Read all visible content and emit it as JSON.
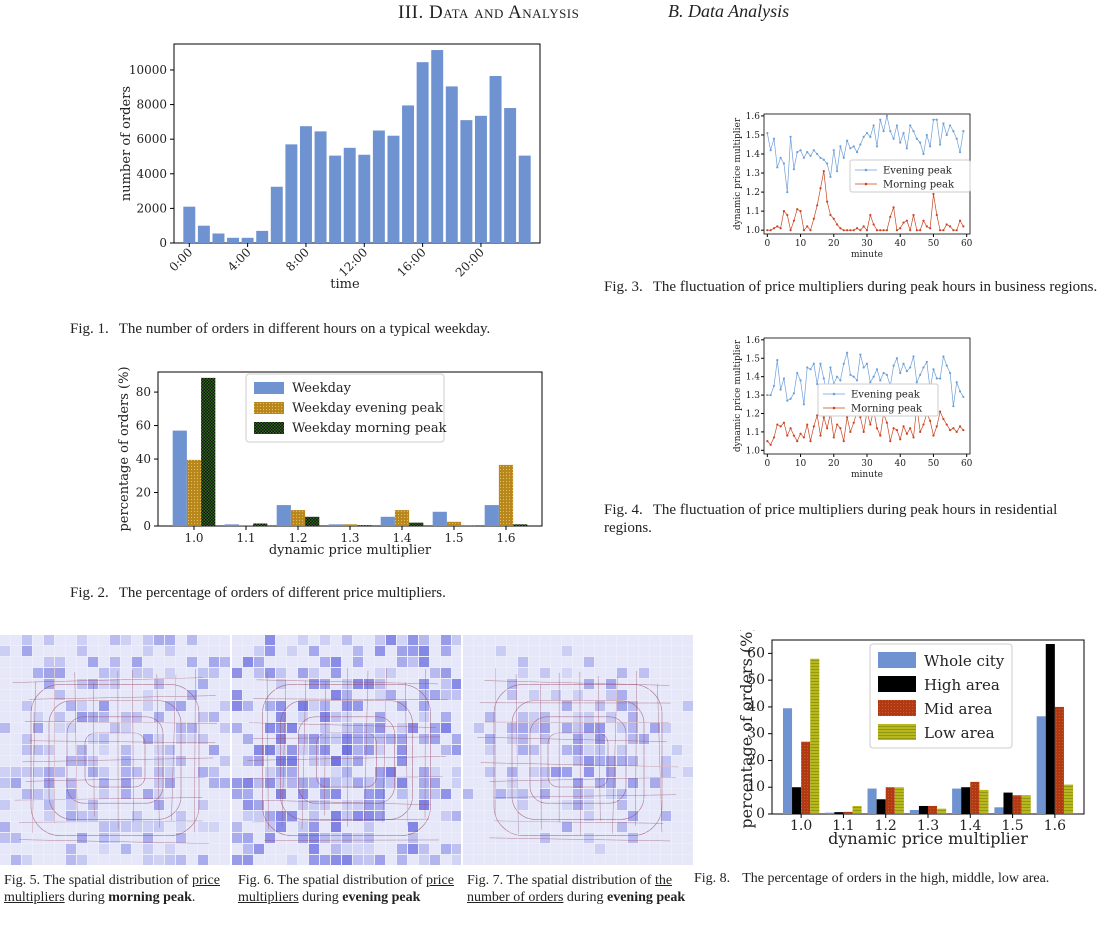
{
  "header": {
    "section_title": "III. Data and Analysis",
    "subsection_title": "B. Data Analysis"
  },
  "captions": {
    "fig1": {
      "num": "Fig. 1.",
      "text": "The number of orders in different hours on a typical weekday."
    },
    "fig2": {
      "num": "Fig. 2.",
      "text": "The percentage of orders of different price multipliers."
    },
    "fig3": {
      "num": "Fig. 3.",
      "text": "The fluctuation of price multipliers during peak hours in business regions."
    },
    "fig4": {
      "num": "Fig. 4.",
      "text": "The fluctuation of price multipliers during peak hours in residential regions."
    },
    "fig5": {
      "pre": "Fig. 5. The spatial distribution of ",
      "ul": "price multipliers",
      "mid": " during ",
      "bold": "morning peak",
      "post": "."
    },
    "fig6": {
      "pre": "Fig. 6. The spatial distribution of ",
      "ul": "price multipliers",
      "mid": " during ",
      "bold": "evening peak",
      "post": ""
    },
    "fig7": {
      "pre": "Fig. 7. The spatial distribution of ",
      "ul": "the number of orders",
      "mid": " during ",
      "bold": "evening peak",
      "post": ""
    },
    "fig8": {
      "num": "Fig. 8.",
      "text": "The percentage of orders in the high, middle, low area."
    }
  },
  "colors": {
    "blue": "#6f93d0",
    "gold": "#b8861b",
    "green": "#2f6a1c",
    "black": "#000000",
    "red": "#b13a12",
    "olive": "#b8b81c",
    "line_blue": "#6e9fd8",
    "line_red": "#cc4422",
    "map_bg": "#e6e8f9",
    "map_cell": "#6b6fe0",
    "map_road": "#9a4b6a"
  },
  "chart_data": [
    {
      "id": "fig1",
      "type": "bar",
      "xlabel": "time",
      "ylabel": "number of orders",
      "ylim": [
        0,
        11500
      ],
      "yticks": [
        0,
        2000,
        4000,
        6000,
        8000,
        10000
      ],
      "xticks": [
        {
          "i": 0,
          "label": "0:00"
        },
        {
          "i": 4,
          "label": "4:00"
        },
        {
          "i": 8,
          "label": "8:00"
        },
        {
          "i": 12,
          "label": "12:00"
        },
        {
          "i": 16,
          "label": "16:00"
        },
        {
          "i": 20,
          "label": "20:00"
        }
      ],
      "categories": [
        "0",
        "1",
        "2",
        "3",
        "4",
        "5",
        "6",
        "7",
        "8",
        "9",
        "10",
        "11",
        "12",
        "13",
        "14",
        "15",
        "16",
        "17",
        "18",
        "19",
        "20",
        "21",
        "22",
        "23"
      ],
      "values": [
        2100,
        1000,
        550,
        300,
        300,
        700,
        3250,
        5700,
        6750,
        6450,
        5050,
        5500,
        5100,
        6500,
        6200,
        7950,
        10450,
        11150,
        9050,
        7100,
        7350,
        9650,
        7800,
        5050
      ]
    },
    {
      "id": "fig2",
      "type": "bar",
      "xlabel": "dynamic price multiplier",
      "ylabel": "percentage of orders (%)",
      "ylim": [
        0,
        92
      ],
      "yticks": [
        0,
        20,
        40,
        60,
        80
      ],
      "categories": [
        "1.0",
        "1.1",
        "1.2",
        "1.3",
        "1.4",
        "1.5",
        "1.6"
      ],
      "series": [
        {
          "name": "Weekday",
          "values": [
            57,
            1,
            12.5,
            1,
            5.5,
            8.5,
            12.5
          ]
        },
        {
          "name": "Weekday evening peak",
          "values": [
            39.5,
            0.5,
            9.5,
            1,
            9.5,
            2.5,
            36.5
          ]
        },
        {
          "name": "Weekday morning peak",
          "values": [
            88.5,
            1.5,
            5.5,
            0.5,
            2,
            0.2,
            1
          ]
        }
      ],
      "legend": "top-center"
    },
    {
      "id": "fig3",
      "type": "line",
      "xlabel": "minute",
      "ylabel": "dynamic price multiplier",
      "xlim": [
        -1,
        61
      ],
      "ylim": [
        0.98,
        1.61
      ],
      "xticks": [
        0,
        10,
        20,
        30,
        40,
        50,
        60
      ],
      "yticks": [
        1.0,
        1.1,
        1.2,
        1.3,
        1.4,
        1.5,
        1.6
      ],
      "x": [
        0,
        1,
        2,
        3,
        4,
        5,
        6,
        7,
        8,
        9,
        10,
        11,
        12,
        13,
        14,
        15,
        16,
        17,
        18,
        19,
        20,
        21,
        22,
        23,
        24,
        25,
        26,
        27,
        28,
        29,
        30,
        31,
        32,
        33,
        34,
        35,
        36,
        37,
        38,
        39,
        40,
        41,
        42,
        43,
        44,
        45,
        46,
        47,
        48,
        49,
        50,
        51,
        52,
        53,
        54,
        55,
        56,
        57,
        58,
        59
      ],
      "series": [
        {
          "name": "Evening peak",
          "values": [
            1.51,
            1.42,
            1.48,
            1.33,
            1.38,
            1.35,
            1.2,
            1.49,
            1.32,
            1.41,
            1.42,
            1.38,
            1.41,
            1.39,
            1.42,
            1.4,
            1.38,
            1.37,
            1.35,
            1.28,
            1.42,
            1.31,
            1.44,
            1.38,
            1.47,
            1.43,
            1.44,
            1.41,
            1.45,
            1.49,
            1.51,
            1.49,
            1.55,
            1.44,
            1.58,
            1.52,
            1.6,
            1.52,
            1.48,
            1.55,
            1.46,
            1.51,
            1.43,
            1.55,
            1.52,
            1.48,
            1.46,
            1.4,
            1.5,
            1.44,
            1.58,
            1.58,
            1.45,
            1.56,
            1.5,
            1.55,
            1.52,
            1.48,
            1.41,
            1.52
          ]
        },
        {
          "name": "Morning peak",
          "values": [
            1.0,
            1.0,
            1.01,
            1.02,
            1.01,
            1.1,
            1.08,
            1.0,
            1.05,
            1.11,
            1.1,
            1.0,
            1.02,
            1.0,
            1.06,
            1.13,
            1.22,
            1.31,
            1.15,
            1.08,
            1.06,
            1.03,
            1.01,
            1.0,
            1.0,
            1.0,
            1.0,
            1.01,
            1.0,
            1.02,
            1.0,
            1.08,
            1.03,
            1.0,
            1.0,
            1.0,
            1.0,
            1.07,
            1.12,
            1.0,
            1.01,
            1.04,
            1.05,
            1.0,
            1.08,
            1.0,
            1.0,
            1.05,
            1.02,
            1.01,
            1.19,
            1.08,
            1.0,
            1.0,
            1.03,
            1.02,
            1.0,
            1.0,
            1.05,
            1.02
          ]
        }
      ],
      "legend": "center-right"
    },
    {
      "id": "fig4",
      "type": "line",
      "xlabel": "minute",
      "ylabel": "dynamic price multiplier",
      "xlim": [
        -1,
        61
      ],
      "ylim": [
        0.98,
        1.61
      ],
      "xticks": [
        0,
        10,
        20,
        30,
        40,
        50,
        60
      ],
      "yticks": [
        1.0,
        1.1,
        1.2,
        1.3,
        1.4,
        1.5,
        1.6
      ],
      "x": [
        0,
        1,
        2,
        3,
        4,
        5,
        6,
        7,
        8,
        9,
        10,
        11,
        12,
        13,
        14,
        15,
        16,
        17,
        18,
        19,
        20,
        21,
        22,
        23,
        24,
        25,
        26,
        27,
        28,
        29,
        30,
        31,
        32,
        33,
        34,
        35,
        36,
        37,
        38,
        39,
        40,
        41,
        42,
        43,
        44,
        45,
        46,
        47,
        48,
        49,
        50,
        51,
        52,
        53,
        54,
        55,
        56,
        57,
        58,
        59
      ],
      "series": [
        {
          "name": "Evening peak",
          "values": [
            1.3,
            1.3,
            1.35,
            1.49,
            1.33,
            1.39,
            1.27,
            1.28,
            1.31,
            1.42,
            1.38,
            1.25,
            1.45,
            1.44,
            1.47,
            1.36,
            1.47,
            1.39,
            1.3,
            1.45,
            1.36,
            1.4,
            1.38,
            1.47,
            1.53,
            1.41,
            1.4,
            1.38,
            1.52,
            1.45,
            1.47,
            1.37,
            1.4,
            1.44,
            1.38,
            1.42,
            1.41,
            1.35,
            1.46,
            1.5,
            1.42,
            1.47,
            1.43,
            1.45,
            1.51,
            1.37,
            1.41,
            1.45,
            1.48,
            1.33,
            1.44,
            1.39,
            1.39,
            1.51,
            1.46,
            1.42,
            1.24,
            1.37,
            1.32,
            1.29
          ]
        },
        {
          "name": "Morning peak",
          "values": [
            1.05,
            1.03,
            1.07,
            1.14,
            1.13,
            1.15,
            1.08,
            1.12,
            1.08,
            1.05,
            1.09,
            1.07,
            1.14,
            1.05,
            1.13,
            1.19,
            1.08,
            1.18,
            1.12,
            1.2,
            1.07,
            1.14,
            1.12,
            1.05,
            1.18,
            1.1,
            1.15,
            1.21,
            1.18,
            1.1,
            1.21,
            1.14,
            1.22,
            1.12,
            1.08,
            1.2,
            1.15,
            1.05,
            1.12,
            1.11,
            1.06,
            1.13,
            1.09,
            1.12,
            1.07,
            1.24,
            1.1,
            1.14,
            1.2,
            1.16,
            1.08,
            1.13,
            1.21,
            1.17,
            1.14,
            1.11,
            1.12,
            1.1,
            1.13,
            1.11
          ]
        }
      ],
      "legend": "center"
    },
    {
      "id": "fig8",
      "type": "bar",
      "xlabel": "dynamic price multiplier",
      "ylabel": "percentage of orders (%)",
      "ylim": [
        0,
        65
      ],
      "yticks": [
        0,
        10,
        20,
        30,
        40,
        50,
        60
      ],
      "categories": [
        "1.0",
        "1.1",
        "1.2",
        "1.3",
        "1.4",
        "1.5",
        "1.6"
      ],
      "series": [
        {
          "name": "Whole city",
          "values": [
            39.5,
            0.5,
            9.5,
            1.5,
            9.5,
            2.5,
            36.5
          ]
        },
        {
          "name": "High area",
          "values": [
            10,
            0.7,
            5.5,
            3,
            10,
            8,
            63.5
          ]
        },
        {
          "name": "Mid area",
          "values": [
            27,
            0.8,
            10,
            3,
            12,
            7,
            40
          ]
        },
        {
          "name": "Low area",
          "values": [
            58,
            3,
            10,
            2,
            9,
            7,
            11
          ]
        }
      ],
      "legend": "top-left"
    }
  ]
}
